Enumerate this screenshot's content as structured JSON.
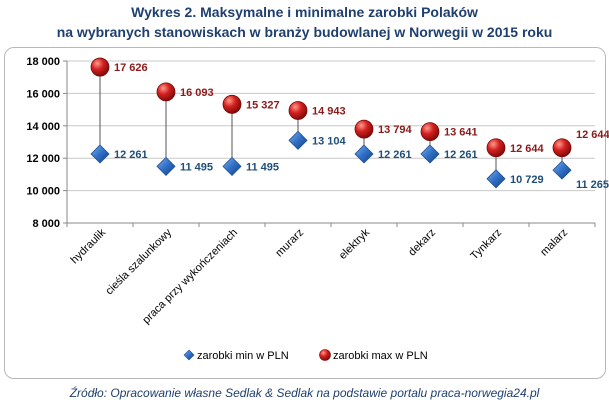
{
  "chart_data": {
    "type": "scatter",
    "title": "Wykres 2. Maksymalne i minimalne zarobki Polaków",
    "subtitle": "na  wybranych stanowiskach w branży budowlanej w Norwegii w 2015 roku",
    "categories": [
      "hydraulik",
      "cieśla szalunkowy",
      "praca przy wykończeniach",
      "murarz",
      "elektryk",
      "dekarz",
      "Tynkarz",
      "malarz"
    ],
    "series": [
      {
        "name": "zarobki min w PLN",
        "marker": "diamond",
        "color": "#2e6cc4",
        "values": [
          12261,
          11495,
          11495,
          13104,
          12261,
          12261,
          10729,
          11265
        ],
        "labels": [
          "12 261",
          "11 495",
          "11 495",
          "13 104",
          "12 261",
          "12 261",
          "10 729",
          "11 265"
        ]
      },
      {
        "name": "zarobki max w PLN",
        "marker": "circle",
        "color": "#c41a1a",
        "values": [
          17626,
          16093,
          15327,
          14943,
          13794,
          13641,
          12644,
          12644
        ],
        "labels": [
          "17 626",
          "16 093",
          "15 327",
          "14 943",
          "13 794",
          "13 641",
          "12 644",
          "12 644"
        ]
      }
    ],
    "ylim": [
      8000,
      18000
    ],
    "yticks": [
      8000,
      10000,
      12000,
      14000,
      16000,
      18000
    ],
    "ytick_labels": [
      "8 000",
      "10 000",
      "12 000",
      "14 000",
      "16 000",
      "18 000"
    ],
    "grid": true,
    "legend": "bottom-center",
    "min_label_color": "#1f4e79",
    "max_label_color": "#8b1a1a"
  },
  "source": "Źródło: Opracowanie własne Sedlak & Sedlak na podstawie portalu praca-norwegia24.pl"
}
